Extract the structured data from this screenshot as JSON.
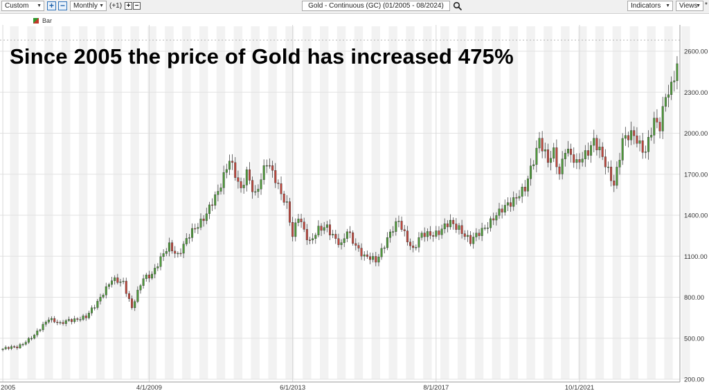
{
  "toolbar": {
    "range_select": "Custom",
    "period_select": "Monthly",
    "offset_label": "(+1)",
    "symbol_title": "Gold - Continuous (GC) (01/2005 - 08/2024)",
    "indicators_label": "Indicators",
    "views_label": "Views",
    "icons": [
      "plus-icon",
      "minus-icon",
      "search-icon",
      "chevron-down-icon"
    ]
  },
  "legend": {
    "label": "Bar"
  },
  "headline": "Since 2005 the price of Gold has increased 475%",
  "colors": {
    "up": "#4e9a3a",
    "down": "#c0473d",
    "grid": "#e2e2e2",
    "band": "#f2f2f2"
  },
  "chart_data": {
    "type": "candlestick",
    "interval": "monthly",
    "x_tick_labels": [
      "2005",
      "4/1/2009",
      "6/1/2013",
      "8/1/2017",
      "10/1/2021"
    ],
    "x_tick_dates": [
      "2005-01",
      "2009-04",
      "2013-06",
      "2017-08",
      "2021-10"
    ],
    "y_tick_labels": [
      "200.00",
      "500.00",
      "800.00",
      "1100.00",
      "1400.00",
      "1700.00",
      "2000.00",
      "2300.00",
      "2600.00"
    ],
    "ylim": [
      200,
      2600
    ],
    "date_range": [
      "2005-01",
      "2024-08"
    ],
    "close_path": [
      [
        "2005-01",
        422
      ],
      [
        "2005-06",
        437
      ],
      [
        "2005-12",
        517
      ],
      [
        "2006-05",
        650
      ],
      [
        "2006-09",
        600
      ],
      [
        "2006-12",
        635
      ],
      [
        "2007-06",
        650
      ],
      [
        "2007-09",
        740
      ],
      [
        "2007-12",
        835
      ],
      [
        "2008-03",
        920
      ],
      [
        "2008-07",
        915
      ],
      [
        "2008-10",
        720
      ],
      [
        "2009-02",
        940
      ],
      [
        "2009-05",
        975
      ],
      [
        "2009-11",
        1175
      ],
      [
        "2010-02",
        1115
      ],
      [
        "2010-06",
        1245
      ],
      [
        "2010-12",
        1420
      ],
      [
        "2011-04",
        1555
      ],
      [
        "2011-08",
        1830
      ],
      [
        "2011-12",
        1565
      ],
      [
        "2012-02",
        1710
      ],
      [
        "2012-05",
        1560
      ],
      [
        "2012-09",
        1775
      ],
      [
        "2012-12",
        1675
      ],
      [
        "2013-04",
        1470
      ],
      [
        "2013-06",
        1235
      ],
      [
        "2013-08",
        1395
      ],
      [
        "2013-12",
        1205
      ],
      [
        "2014-03",
        1285
      ],
      [
        "2014-06",
        1320
      ],
      [
        "2014-11",
        1170
      ],
      [
        "2015-01",
        1280
      ],
      [
        "2015-07",
        1095
      ],
      [
        "2015-11",
        1065
      ],
      [
        "2016-03",
        1235
      ],
      [
        "2016-07",
        1350
      ],
      [
        "2016-12",
        1150
      ],
      [
        "2017-03",
        1250
      ],
      [
        "2017-09",
        1280
      ],
      [
        "2018-01",
        1340
      ],
      [
        "2018-04",
        1315
      ],
      [
        "2018-08",
        1200
      ],
      [
        "2019-01",
        1320
      ],
      [
        "2019-06",
        1410
      ],
      [
        "2019-09",
        1490
      ],
      [
        "2020-03",
        1580
      ],
      [
        "2020-08",
        1970
      ],
      [
        "2020-11",
        1780
      ],
      [
        "2021-01",
        1850
      ],
      [
        "2021-03",
        1710
      ],
      [
        "2021-05",
        1905
      ],
      [
        "2021-09",
        1760
      ],
      [
        "2022-03",
        1950
      ],
      [
        "2022-07",
        1765
      ],
      [
        "2022-10",
        1640
      ],
      [
        "2023-01",
        1940
      ],
      [
        "2023-05",
        1990
      ],
      [
        "2023-09",
        1870
      ],
      [
        "2023-12",
        2070
      ],
      [
        "2024-02",
        2050
      ],
      [
        "2024-04",
        2300
      ],
      [
        "2024-06",
        2340
      ],
      [
        "2024-08",
        2480
      ]
    ]
  }
}
